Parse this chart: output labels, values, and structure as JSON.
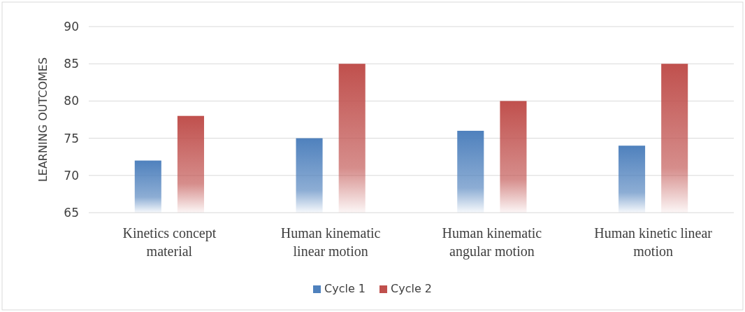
{
  "chart_data": {
    "type": "bar",
    "ylabel": "LEARNING OUTCOMES",
    "categories": [
      "Kinetics concept material",
      "Human kinematic linear motion",
      "Human kinematic angular motion",
      "Human kinetic linear motion"
    ],
    "series": [
      {
        "name": "Cycle 1",
        "color": "#4f81bd",
        "values": [
          72,
          75,
          76,
          74
        ]
      },
      {
        "name": "Cycle 2",
        "color": "#c0504d",
        "values": [
          78,
          85,
          80,
          85
        ]
      }
    ],
    "ylim": [
      65,
      90
    ],
    "yticks": [
      65,
      70,
      75,
      80,
      85,
      90
    ],
    "grid": "y",
    "legend": "bottom"
  }
}
